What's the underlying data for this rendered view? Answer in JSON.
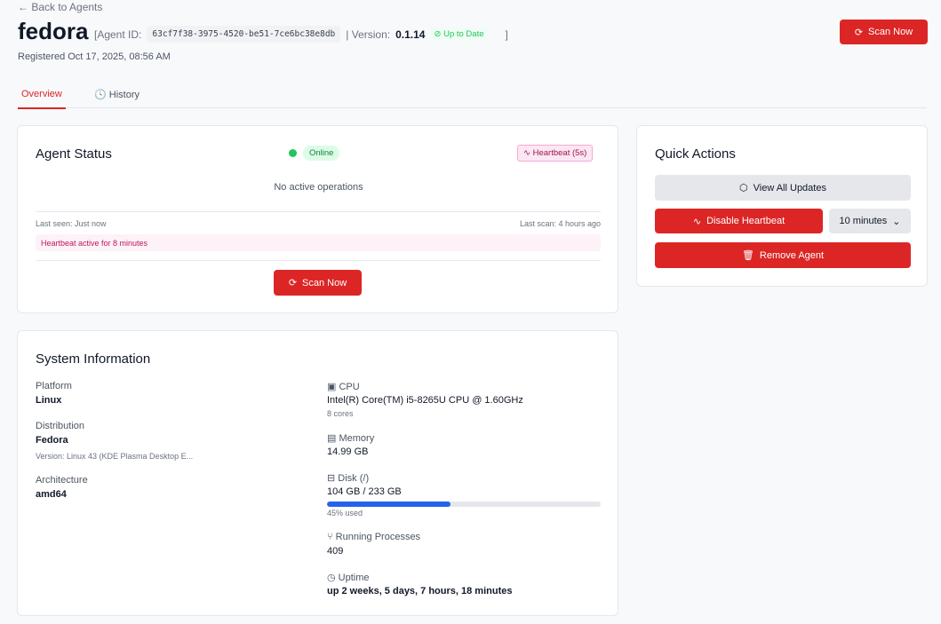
{
  "nav": {
    "back": "← Back to Agents"
  },
  "header": {
    "name": "fedora",
    "agent_id_label": "[Agent ID:",
    "agent_id": "63cf7f38-3975-4520-be51-7ce6bc38e8db",
    "version_label": "| Version:",
    "version": "0.1.14",
    "status": "Up to Date",
    "close_bracket": "]",
    "registered": "Registered Oct 17, 2025, 08:56 AM",
    "scan_now": "Scan Now"
  },
  "tabs": [
    {
      "label": "Overview",
      "active": true
    },
    {
      "label": "History",
      "icon": "history-icon"
    }
  ],
  "agent_status": {
    "title": "Agent Status",
    "online": "Online",
    "heartbeat": "Heartbeat (5s)",
    "operations": "No active operations",
    "last_seen": "Last seen: Just now",
    "last_scan": "Last scan: 4 hours ago",
    "heartbeat_active": "Heartbeat active for 8 minutes",
    "scan_now": "Scan Now"
  },
  "system": {
    "title": "System Information",
    "platform_label": "Platform",
    "platform": "Linux",
    "distribution_label": "Distribution",
    "distribution": "Fedora",
    "distribution_version": "Version: Linux 43 (KDE Plasma Desktop E...",
    "arch_label": "Architecture",
    "arch": "amd64",
    "cpu_label": "CPU",
    "cpu": "Intel(R) Core(TM) i5-8265U CPU @ 1.60GHz",
    "cores": "8 cores",
    "memory_label": "Memory",
    "memory": "14.99 GB",
    "disk_label": "Disk (/)",
    "disk": "104 GB / 233 GB",
    "disk_used_percent": 45,
    "disk_used_text": "45% used",
    "processes_label": "Running Processes",
    "processes": "409",
    "uptime_label": "Uptime",
    "uptime": "up 2 weeks, 5 days, 7 hours, 18 minutes"
  },
  "quick_actions": {
    "title": "Quick Actions",
    "view_updates": "View All Updates",
    "disable_heartbeat": "Disable Heartbeat",
    "duration": "10 minutes",
    "remove_agent": "Remove Agent"
  },
  "colors": {
    "accent": "#dc2626",
    "online": "#22c55e",
    "disk_bar": "#2563eb",
    "heartbeat": "#be185d"
  }
}
